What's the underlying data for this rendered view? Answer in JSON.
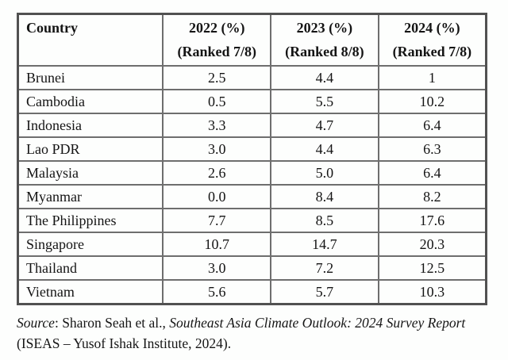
{
  "table": {
    "columns": [
      {
        "line1": "Country",
        "line2": ""
      },
      {
        "line1": "2022 (%)",
        "line2": "(Ranked 7/8)"
      },
      {
        "line1": "2023 (%)",
        "line2": "(Ranked 8/8)"
      },
      {
        "line1": "2024 (%)",
        "line2": "(Ranked 7/8)"
      }
    ],
    "rows": [
      {
        "country": "Brunei",
        "values": [
          "2.5",
          "4.4",
          "1"
        ]
      },
      {
        "country": "Cambodia",
        "values": [
          "0.5",
          "5.5",
          "10.2"
        ]
      },
      {
        "country": "Indonesia",
        "values": [
          "3.3",
          "4.7",
          "6.4"
        ]
      },
      {
        "country": "Lao PDR",
        "values": [
          "3.0",
          "4.4",
          "6.3"
        ]
      },
      {
        "country": "Malaysia",
        "values": [
          "2.6",
          "5.0",
          "6.4"
        ]
      },
      {
        "country": "Myanmar",
        "values": [
          "0.0",
          "8.4",
          "8.2"
        ]
      },
      {
        "country": "The Philippines",
        "values": [
          "7.7",
          "8.5",
          "17.6"
        ]
      },
      {
        "country": "Singapore",
        "values": [
          "10.7",
          "14.7",
          "20.3"
        ]
      },
      {
        "country": "Thailand",
        "values": [
          "3.0",
          "7.2",
          "12.5"
        ]
      },
      {
        "country": "Vietnam",
        "values": [
          "5.6",
          "5.7",
          "10.3"
        ]
      }
    ]
  },
  "source": {
    "label": "Source",
    "authors": ": Sharon Seah et al., ",
    "title": "Southeast Asia Climate Outlook: 2024 Survey Report",
    "publisher": " (ISEAS – Yusof Ishak Institute, 2024)."
  },
  "colors": {
    "background": "#fdfefd",
    "grid_line": "#6e6e6e",
    "outer_border": "#515151",
    "text": "#141414"
  }
}
